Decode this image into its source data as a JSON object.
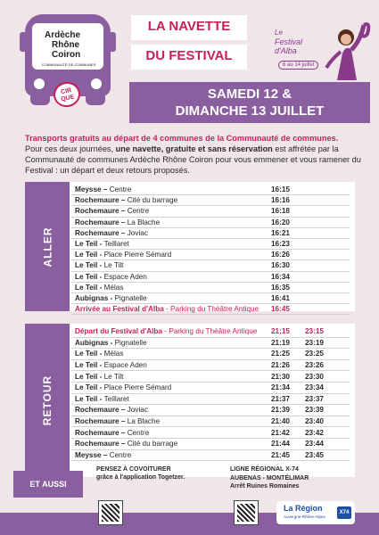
{
  "logo": {
    "line1": "Ardèche",
    "line2": "Rhône",
    "line3": "Coiron",
    "subtitle": "COMMUNAUTÉ DE COMMUNES",
    "cirque_line1": "CIR",
    "cirque_line2": "QUE"
  },
  "title": {
    "line1": "LA NAVETTE",
    "line2": "DU FESTIVAL"
  },
  "dates": {
    "line1": "SAMEDI 12 &",
    "line2": "DIMANCHE 13 JUILLET"
  },
  "festival": {
    "label1": "Le",
    "label2": "Festival",
    "label3": "d'Alba",
    "dates": "6 au 14 juillet"
  },
  "intro": {
    "lead": "Transports gratuits au départ de 4 communes de la Communauté de communes.",
    "p1": "Pour ces deux journées, ",
    "p_bold": "une navette, gratuite et sans réservation",
    "p2": " est affrétée par la Communauté de communes Ardèche Rhône Coiron pour vous emmener et vous ramener du Festival : un départ et deux retours proposés."
  },
  "aller": {
    "label": "ALLER",
    "rows": [
      {
        "town": "Meysse – ",
        "stop": "Centre",
        "t1": "16:15"
      },
      {
        "town": "Rochemaure – ",
        "stop": "Cité du barrage",
        "t1": "16:16"
      },
      {
        "town": "Rochemaure – ",
        "stop": "Centre",
        "t1": "16:18"
      },
      {
        "town": "Rochemaure – ",
        "stop": "La Blache",
        "t1": "16:20"
      },
      {
        "town": "Rochemaure – ",
        "stop": " Joviac",
        "t1": "16:21"
      },
      {
        "town": "Le Teil - ",
        "stop": "Teillaret",
        "t1": "16:23"
      },
      {
        "town": "Le Teil - ",
        "stop": "Place Pierre Sémard",
        "t1": "16:26"
      },
      {
        "town": "Le Teil - ",
        "stop": "Le Tilt",
        "t1": "16:30"
      },
      {
        "town": "Le Teil - ",
        "stop": " Espace Aden",
        "t1": "16:34"
      },
      {
        "town": "Le Teil - ",
        "stop": "Mélas",
        "t1": "16:35"
      },
      {
        "town": "Aubignas - ",
        "stop": "Pignatelle",
        "t1": "16:41"
      },
      {
        "town": "Arrivée au Festival d'Alba",
        "stop": " - Parking du Théâtre Antique",
        "t1": "16:45",
        "highlight": true
      }
    ]
  },
  "retour": {
    "label": "RETOUR",
    "rows": [
      {
        "town": "Départ du Festival d'Alba",
        "stop": " - Parking du Théâtre Antique",
        "t1": "21:15",
        "t2": "23:15",
        "highlight": true
      },
      {
        "town": "Aubignas - ",
        "stop": "Pignatelle",
        "t1": "21:19",
        "t2": "23:19"
      },
      {
        "town": "Le Teil - ",
        "stop": "Mélas",
        "t1": "21:25",
        "t2": "23:25"
      },
      {
        "town": "Le Teil - ",
        "stop": " Espace Aden",
        "t1": "21:26",
        "t2": "23:26"
      },
      {
        "town": "Le Teil - ",
        "stop": "Le Tilt",
        "t1": "21:30",
        "t2": "23:30"
      },
      {
        "town": "Le Teil - ",
        "stop": "Place Pierre Sémard",
        "t1": "21:34",
        "t2": "23:34"
      },
      {
        "town": "Le Teil - ",
        "stop": "Teillaret",
        "t1": "21:37",
        "t2": "23:37"
      },
      {
        "town": "Rochemaure – ",
        "stop": " Joviac",
        "t1": "21:39",
        "t2": "23:39"
      },
      {
        "town": "Rochemaure – ",
        "stop": "La Blache",
        "t1": "21:40",
        "t2": "23:40"
      },
      {
        "town": "Rochemaure – ",
        "stop": "Centre",
        "t1": "21:42",
        "t2": "23:42"
      },
      {
        "town": "Rochemaure – ",
        "stop": "Cité du barrage",
        "t1": "21:44",
        "t2": "23:44"
      },
      {
        "town": "Meysse – ",
        "stop": "Centre",
        "t1": "21:45",
        "t2": "23:45"
      }
    ]
  },
  "footer": {
    "aussi": "ET AUSSI",
    "covo_title": "PENSEZ À COVOITURER",
    "covo_sub": "grâce à l'application Togetzer.",
    "ligne1": "LIGNE RÉGIONAL X-74",
    "ligne2": "AUBENAS - MONTÉLIMAR",
    "ligne3": "Arrêt Ruines Romaines",
    "region_name": "La Région",
    "region_sub": "Auvergne-Rhône-Alpes",
    "region_badge": "X74"
  },
  "colors": {
    "purple": "#8a5fa0",
    "accent_red": "#c8205a",
    "background": "#f0e6ea"
  }
}
